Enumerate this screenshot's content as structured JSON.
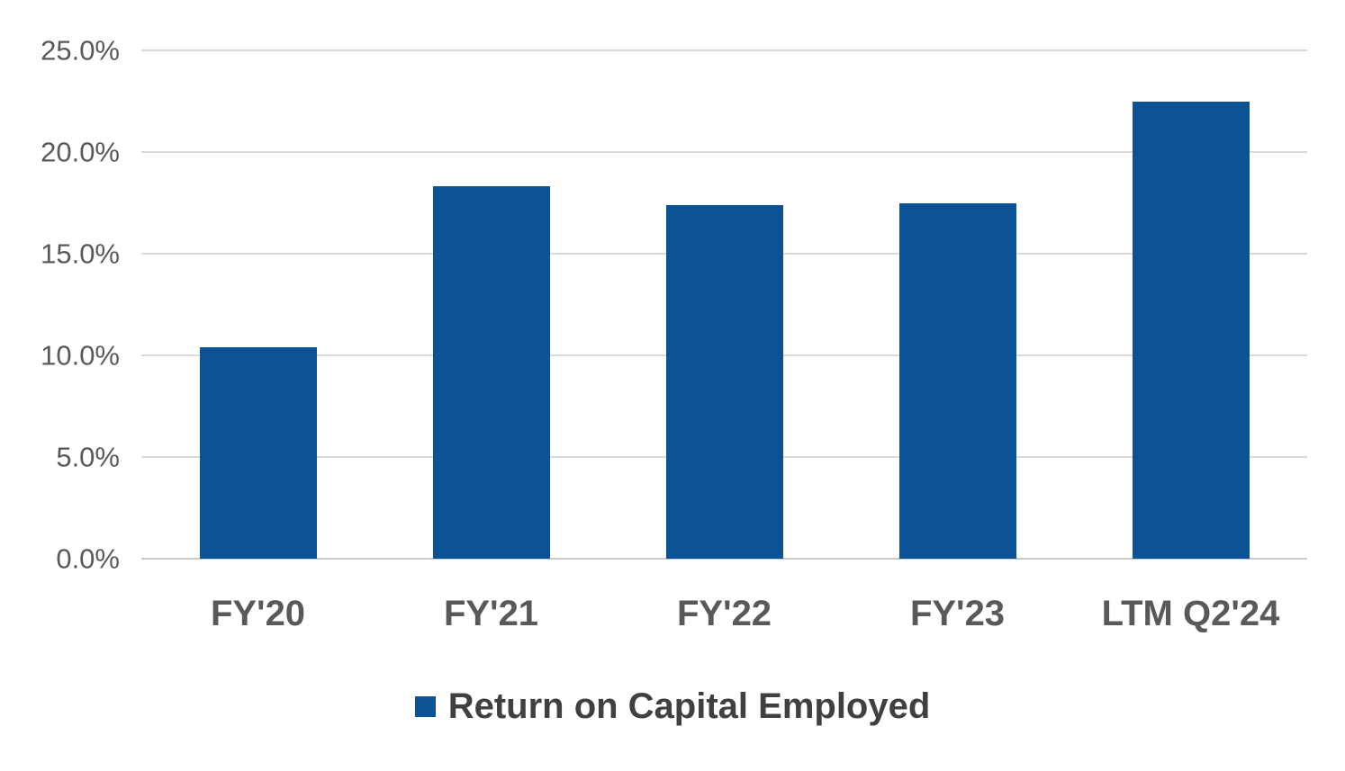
{
  "chart_data": {
    "type": "bar",
    "title": "",
    "categories": [
      "FY'20",
      "FY'21",
      "FY'22",
      "FY'23",
      "LTM Q2'24"
    ],
    "values": [
      10.4,
      18.3,
      17.4,
      17.5,
      22.5
    ],
    "unit": "%",
    "series_name": "Return on Capital Employed",
    "legend": {
      "label": "Return on Capital Employed",
      "position": "bottom-center",
      "marker": "square"
    },
    "xlabel": "",
    "ylabel": "",
    "ylim": [
      0,
      25
    ],
    "yticks": [
      0,
      5,
      10,
      15,
      20,
      25
    ],
    "ytick_labels": [
      "0.0%",
      "5.0%",
      "10.0%",
      "15.0%",
      "20.0%",
      "25.0%"
    ],
    "grid": true,
    "colors": {
      "bar": "#0B5394",
      "gridline": "#D9D9D9",
      "axis_line": "#C9C9C9",
      "tick_label": "#595959",
      "category_label": "#595959",
      "legend_text": "#404040",
      "background": "#FFFFFF"
    }
  }
}
